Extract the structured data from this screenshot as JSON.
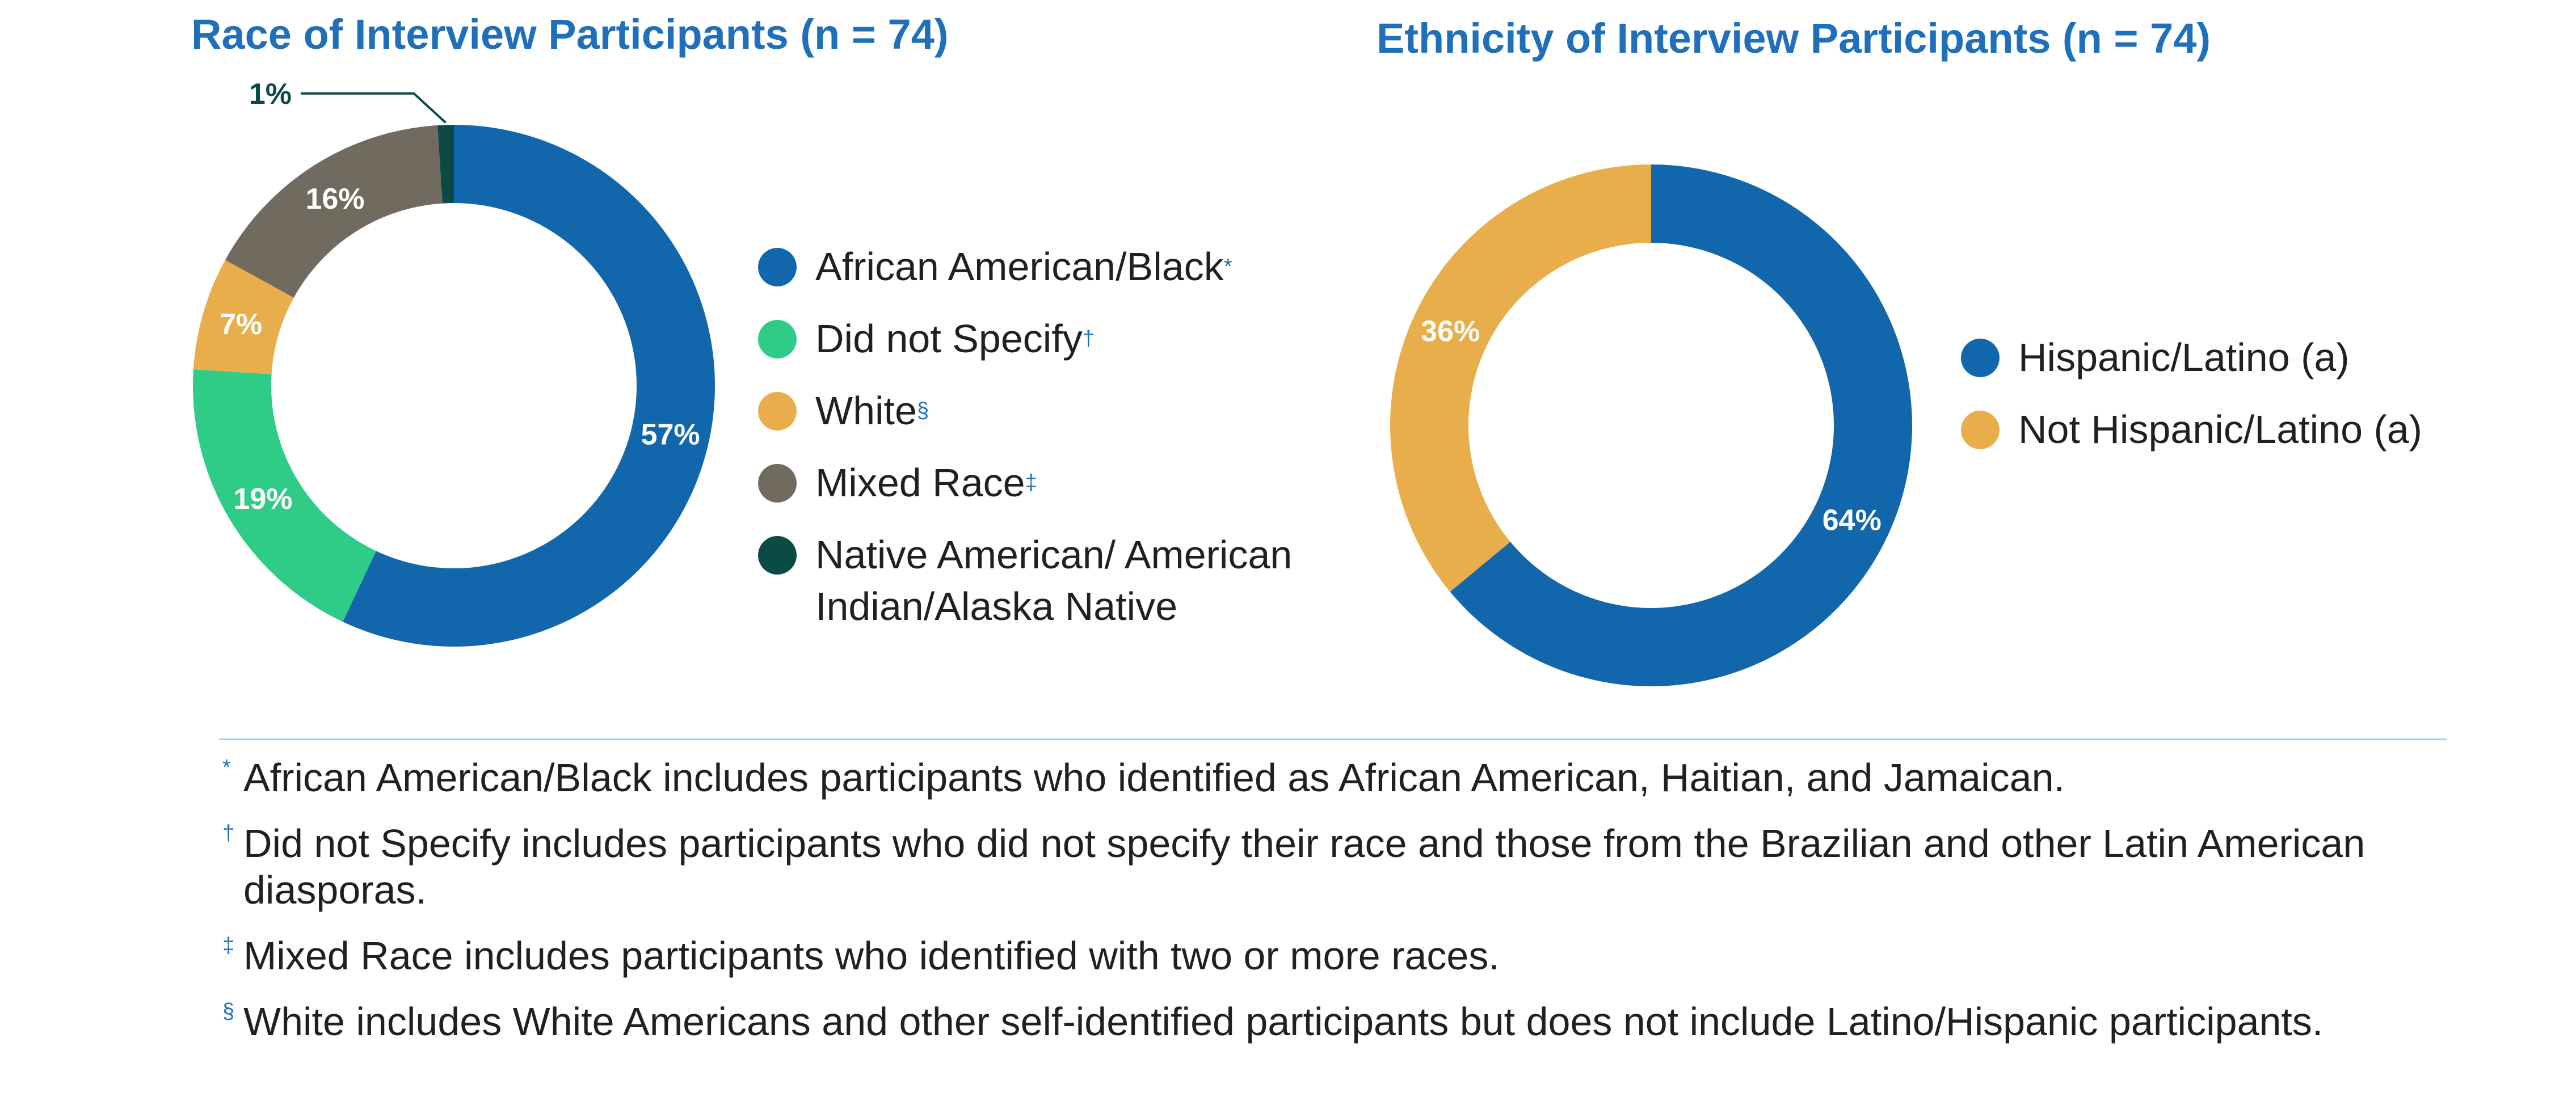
{
  "chart_data": [
    {
      "type": "pie",
      "title": "Race of Interview Participants (n = 74)",
      "series": [
        {
          "label": "African American/Black",
          "mark": "*",
          "value": 57,
          "value_label": "57%",
          "color": "#1266ac"
        },
        {
          "label": "Did not Specify",
          "mark": "†",
          "value": 19,
          "value_label": "19%",
          "color": "#2ecc86"
        },
        {
          "label": "White",
          "mark": "§",
          "value": 7,
          "value_label": "7%",
          "color": "#e8ae4b"
        },
        {
          "label": "Mixed Race",
          "mark": "‡",
          "value": 16,
          "value_label": "16%",
          "color": "#716a5e"
        },
        {
          "label": "Native American/ American Indian/Alaska Native",
          "mark": "",
          "value": 1,
          "value_label": "1%",
          "color": "#0c4a45"
        }
      ],
      "legend_position": "right"
    },
    {
      "type": "pie",
      "title": "Ethnicity of Interview Participants (n = 74)",
      "series": [
        {
          "label": "Hispanic/Latino (a)",
          "mark": "",
          "value": 64,
          "value_label": "64%",
          "color": "#1266ac"
        },
        {
          "label": "Not Hispanic/Latino (a)",
          "mark": "",
          "value": 36,
          "value_label": "36%",
          "color": "#e8ae4b"
        }
      ],
      "legend_position": "right"
    }
  ],
  "notes": [
    {
      "mark": "*",
      "text": "African American/Black includes participants who identified as African American, Haitian, and Jamaican."
    },
    {
      "mark": "†",
      "text": "Did not Specify includes participants who did not specify their race and those from the Brazilian and other Latin American diasporas."
    },
    {
      "mark": "‡",
      "text": "Mixed Race includes participants who identified with two or more races."
    },
    {
      "mark": "§",
      "text": "White includes White Americans and other self-identified participants but does not include Latino/Hispanic participants."
    }
  ]
}
